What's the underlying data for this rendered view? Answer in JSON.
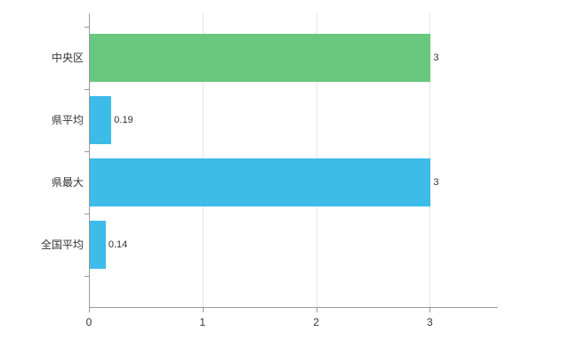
{
  "chart_data": {
    "type": "bar",
    "orientation": "horizontal",
    "title": "",
    "xlabel": "",
    "ylabel": "",
    "categories": [
      "中央区",
      "県平均",
      "県最大",
      "全国平均"
    ],
    "values": [
      3,
      0.19,
      3,
      0.14
    ],
    "value_labels": [
      "3",
      "0.19",
      "3",
      "0.14"
    ],
    "bar_colors": [
      "#68c87e",
      "#3dbbe9",
      "#3dbbe9",
      "#3dbbe9"
    ],
    "x_ticks": [
      0,
      1,
      2,
      3
    ],
    "x_tick_labels": [
      "0",
      "1",
      "2",
      "3"
    ],
    "xlim": [
      0,
      3.6
    ],
    "grid": true,
    "legend_position": "none",
    "colors": {
      "grid": "#e6e6e6",
      "axis": "#9a9a9a",
      "text": "#333333",
      "background": "#ffffff"
    }
  }
}
